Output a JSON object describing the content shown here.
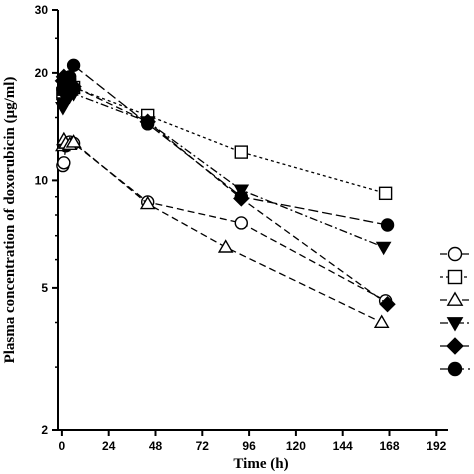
{
  "chart_data": {
    "type": "line",
    "title": "",
    "xlabel": "Time (h)",
    "ylabel": "Plasma concentration of doxorubicin (μg/ml)",
    "xlim": [
      -2,
      198
    ],
    "ylim": [
      2,
      30
    ],
    "yscale": "log",
    "x_ticks": [
      0,
      24,
      48,
      72,
      96,
      120,
      144,
      168,
      192
    ],
    "y_ticks": [
      2,
      5,
      10,
      20,
      30
    ],
    "grid": false,
    "legend_position": "right",
    "series": [
      {
        "marker": "circle-open",
        "line": "dashed",
        "color": "#000000",
        "x": [
          0.5,
          1,
          2,
          4,
          6,
          44,
          92,
          166
        ],
        "y": [
          11.0,
          11.2,
          12.5,
          12.8,
          12.7,
          8.7,
          7.6,
          4.6
        ]
      },
      {
        "marker": "square-open",
        "line": "dotted",
        "color": "#000000",
        "x": [
          0.5,
          1,
          2,
          4,
          6,
          44,
          92,
          166
        ],
        "y": [
          17.5,
          18.0,
          19.0,
          18.5,
          18.2,
          15.2,
          12.0,
          9.2
        ]
      },
      {
        "marker": "triangle-up-open",
        "line": "dashed",
        "color": "#000000",
        "x": [
          0.5,
          1,
          2,
          4,
          6,
          44,
          84,
          164
        ],
        "y": [
          12.5,
          13.0,
          12.7,
          12.6,
          12.8,
          8.6,
          6.5,
          4.0
        ]
      },
      {
        "marker": "triangle-down-filled",
        "line": "dash-dot",
        "color": "#000000",
        "x": [
          0.5,
          1,
          2,
          4,
          6,
          44,
          92,
          165
        ],
        "y": [
          16.0,
          16.5,
          17.0,
          17.2,
          17.5,
          14.6,
          9.4,
          6.5
        ]
      },
      {
        "marker": "diamond-filled",
        "line": "dashed",
        "color": "#000000",
        "x": [
          0.5,
          1,
          2,
          4,
          6,
          44,
          92,
          167
        ],
        "y": [
          19.0,
          19.5,
          18.8,
          18.5,
          18.3,
          14.6,
          8.9,
          4.5
        ]
      },
      {
        "marker": "circle-filled",
        "line": "long-dashed",
        "color": "#000000",
        "x": [
          0.5,
          1,
          2,
          4,
          6,
          44,
          92,
          167
        ],
        "y": [
          18.0,
          18.5,
          19.0,
          19.5,
          21.0,
          14.4,
          9.0,
          7.5
        ]
      }
    ]
  }
}
